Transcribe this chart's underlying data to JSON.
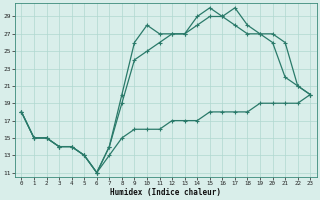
{
  "xlabel": "Humidex (Indice chaleur)",
  "bg_color": "#d9eeea",
  "grid_color": "#b0d8d0",
  "line_color": "#2a7a6a",
  "xlim": [
    -0.5,
    23.5
  ],
  "ylim": [
    10.5,
    30.5
  ],
  "yticks": [
    11,
    13,
    15,
    17,
    19,
    21,
    23,
    25,
    27,
    29
  ],
  "xticks": [
    0,
    1,
    2,
    3,
    4,
    5,
    6,
    7,
    8,
    9,
    10,
    11,
    12,
    13,
    14,
    15,
    16,
    17,
    18,
    19,
    20,
    21,
    22,
    23
  ],
  "line1_x": [
    0,
    1,
    2,
    3,
    4,
    5,
    6,
    7,
    8,
    9,
    10,
    11,
    12,
    13,
    14,
    15,
    16,
    17,
    18,
    19,
    20,
    21,
    22,
    23
  ],
  "line1_y": [
    18,
    15,
    15,
    14,
    14,
    13,
    11,
    14,
    20,
    26,
    28,
    27,
    27,
    27,
    29,
    30,
    29,
    30,
    28,
    27,
    26,
    22,
    21,
    20
  ],
  "line2_x": [
    0,
    1,
    2,
    3,
    4,
    5,
    6,
    7,
    8,
    9,
    10,
    11,
    12,
    13,
    14,
    15,
    16,
    17,
    18,
    19,
    20,
    21,
    22,
    23
  ],
  "line2_y": [
    18,
    15,
    15,
    14,
    14,
    13,
    11,
    14,
    19,
    24,
    25,
    26,
    27,
    27,
    28,
    29,
    29,
    28,
    27,
    27,
    27,
    26,
    21,
    20
  ],
  "line3_x": [
    0,
    1,
    2,
    3,
    4,
    5,
    6,
    7,
    8,
    9,
    10,
    11,
    12,
    13,
    14,
    15,
    16,
    17,
    18,
    19,
    20,
    21,
    22,
    23
  ],
  "line3_y": [
    18,
    15,
    15,
    14,
    14,
    13,
    11,
    13,
    15,
    16,
    16,
    16,
    17,
    17,
    17,
    18,
    18,
    18,
    18,
    19,
    19,
    19,
    19,
    20
  ]
}
